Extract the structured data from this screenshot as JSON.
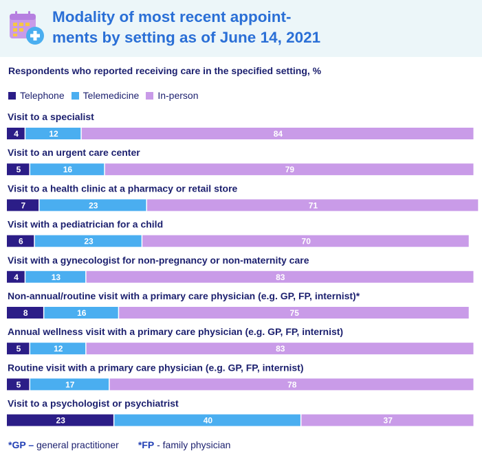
{
  "header": {
    "title": "Modality of most recent appoint-\nments by setting as of June 14, 2021",
    "icon": "calendar-plus-icon"
  },
  "subtitle": "Respondents who reported receiving care in the specified setting, %",
  "legend": [
    {
      "label": "Telephone",
      "color": "#2b1d87"
    },
    {
      "label": "Telemedicine",
      "color": "#4aaef0"
    },
    {
      "label": "In-person",
      "color": "#c99be8"
    }
  ],
  "chart_data": {
    "type": "bar",
    "orientation": "horizontal",
    "stacked": true,
    "xlim": [
      0,
      100
    ],
    "categories": [
      "Visit to a specialist",
      "Visit to an urgent care center",
      "Visit to a health clinic at a pharmacy or retail store",
      "Visit with a pediatrician for a child",
      "Visit with a gynecologist for non-pregnancy or non-maternity care",
      "Non-annual/routine visit with a primary care physician (e.g. GP, FP, internist)*",
      "Annual wellness visit with a primary care physician (e.g. GP, FP, internist)",
      "Routine visit with a primary care physician (e.g. GP, FP, internist)",
      "Visit to a psychologist or psychiatrist"
    ],
    "series": [
      {
        "name": "Telephone",
        "color": "#2b1d87",
        "values": [
          4,
          5,
          7,
          6,
          4,
          8,
          5,
          5,
          23
        ]
      },
      {
        "name": "Telemedicine",
        "color": "#4aaef0",
        "values": [
          12,
          16,
          23,
          23,
          13,
          16,
          12,
          17,
          40
        ]
      },
      {
        "name": "In-person",
        "color": "#c99be8",
        "values": [
          84,
          79,
          71,
          70,
          83,
          75,
          83,
          78,
          37
        ]
      }
    ]
  },
  "footnotes": [
    {
      "key": "*GP –",
      "text": " general practitioner"
    },
    {
      "key": "*FP",
      "text": " - family physician"
    }
  ]
}
